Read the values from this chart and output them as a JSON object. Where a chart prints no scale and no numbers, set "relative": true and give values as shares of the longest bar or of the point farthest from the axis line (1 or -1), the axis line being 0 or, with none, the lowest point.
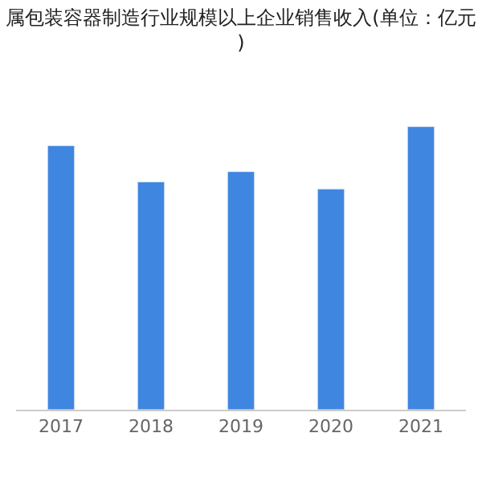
{
  "chart_data": {
    "type": "bar",
    "title": "属包装容器制造行业规模以上企业销售收入(单位：亿元)",
    "categories": [
      "2017",
      "2018",
      "2019",
      "2020",
      "2021"
    ],
    "values": [
      0.933,
      0.805,
      0.841,
      0.78,
      1
    ],
    "color": "#3f86e0",
    "relative": true
  }
}
